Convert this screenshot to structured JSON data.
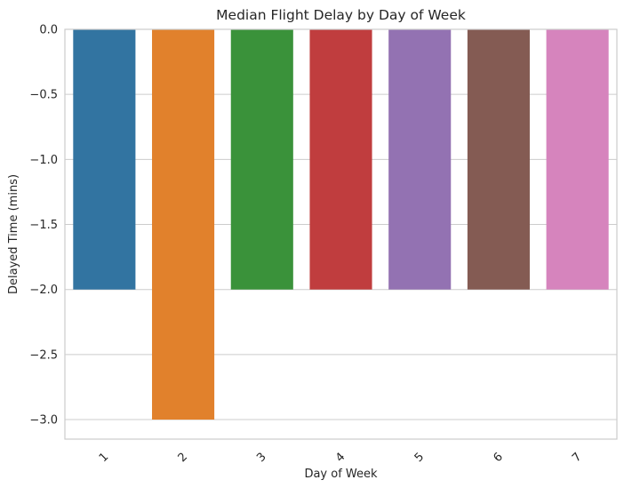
{
  "chart_data": {
    "type": "bar",
    "title": "Median Flight Delay by Day of Week",
    "xlabel": "Day of Week",
    "ylabel": "Delayed Time (mins)",
    "categories": [
      "1",
      "2",
      "3",
      "4",
      "5",
      "6",
      "7"
    ],
    "values": [
      -2.0,
      -3.0,
      -2.0,
      -2.0,
      -2.0,
      -2.0,
      -2.0
    ],
    "colors": [
      "#3274a1",
      "#e1812c",
      "#3a923a",
      "#c03d3e",
      "#9372b2",
      "#845b53",
      "#d684bd"
    ],
    "ylim": [
      -3.15,
      0.0
    ],
    "yticks": [
      0.0,
      -0.5,
      -1.0,
      -1.5,
      -2.0,
      -2.5,
      -3.0
    ],
    "ytick_labels": [
      "0.0",
      "−0.5",
      "−1.0",
      "−1.5",
      "−2.0",
      "−2.5",
      "−3.0"
    ],
    "grid": true,
    "xtick_rotation": 45
  }
}
